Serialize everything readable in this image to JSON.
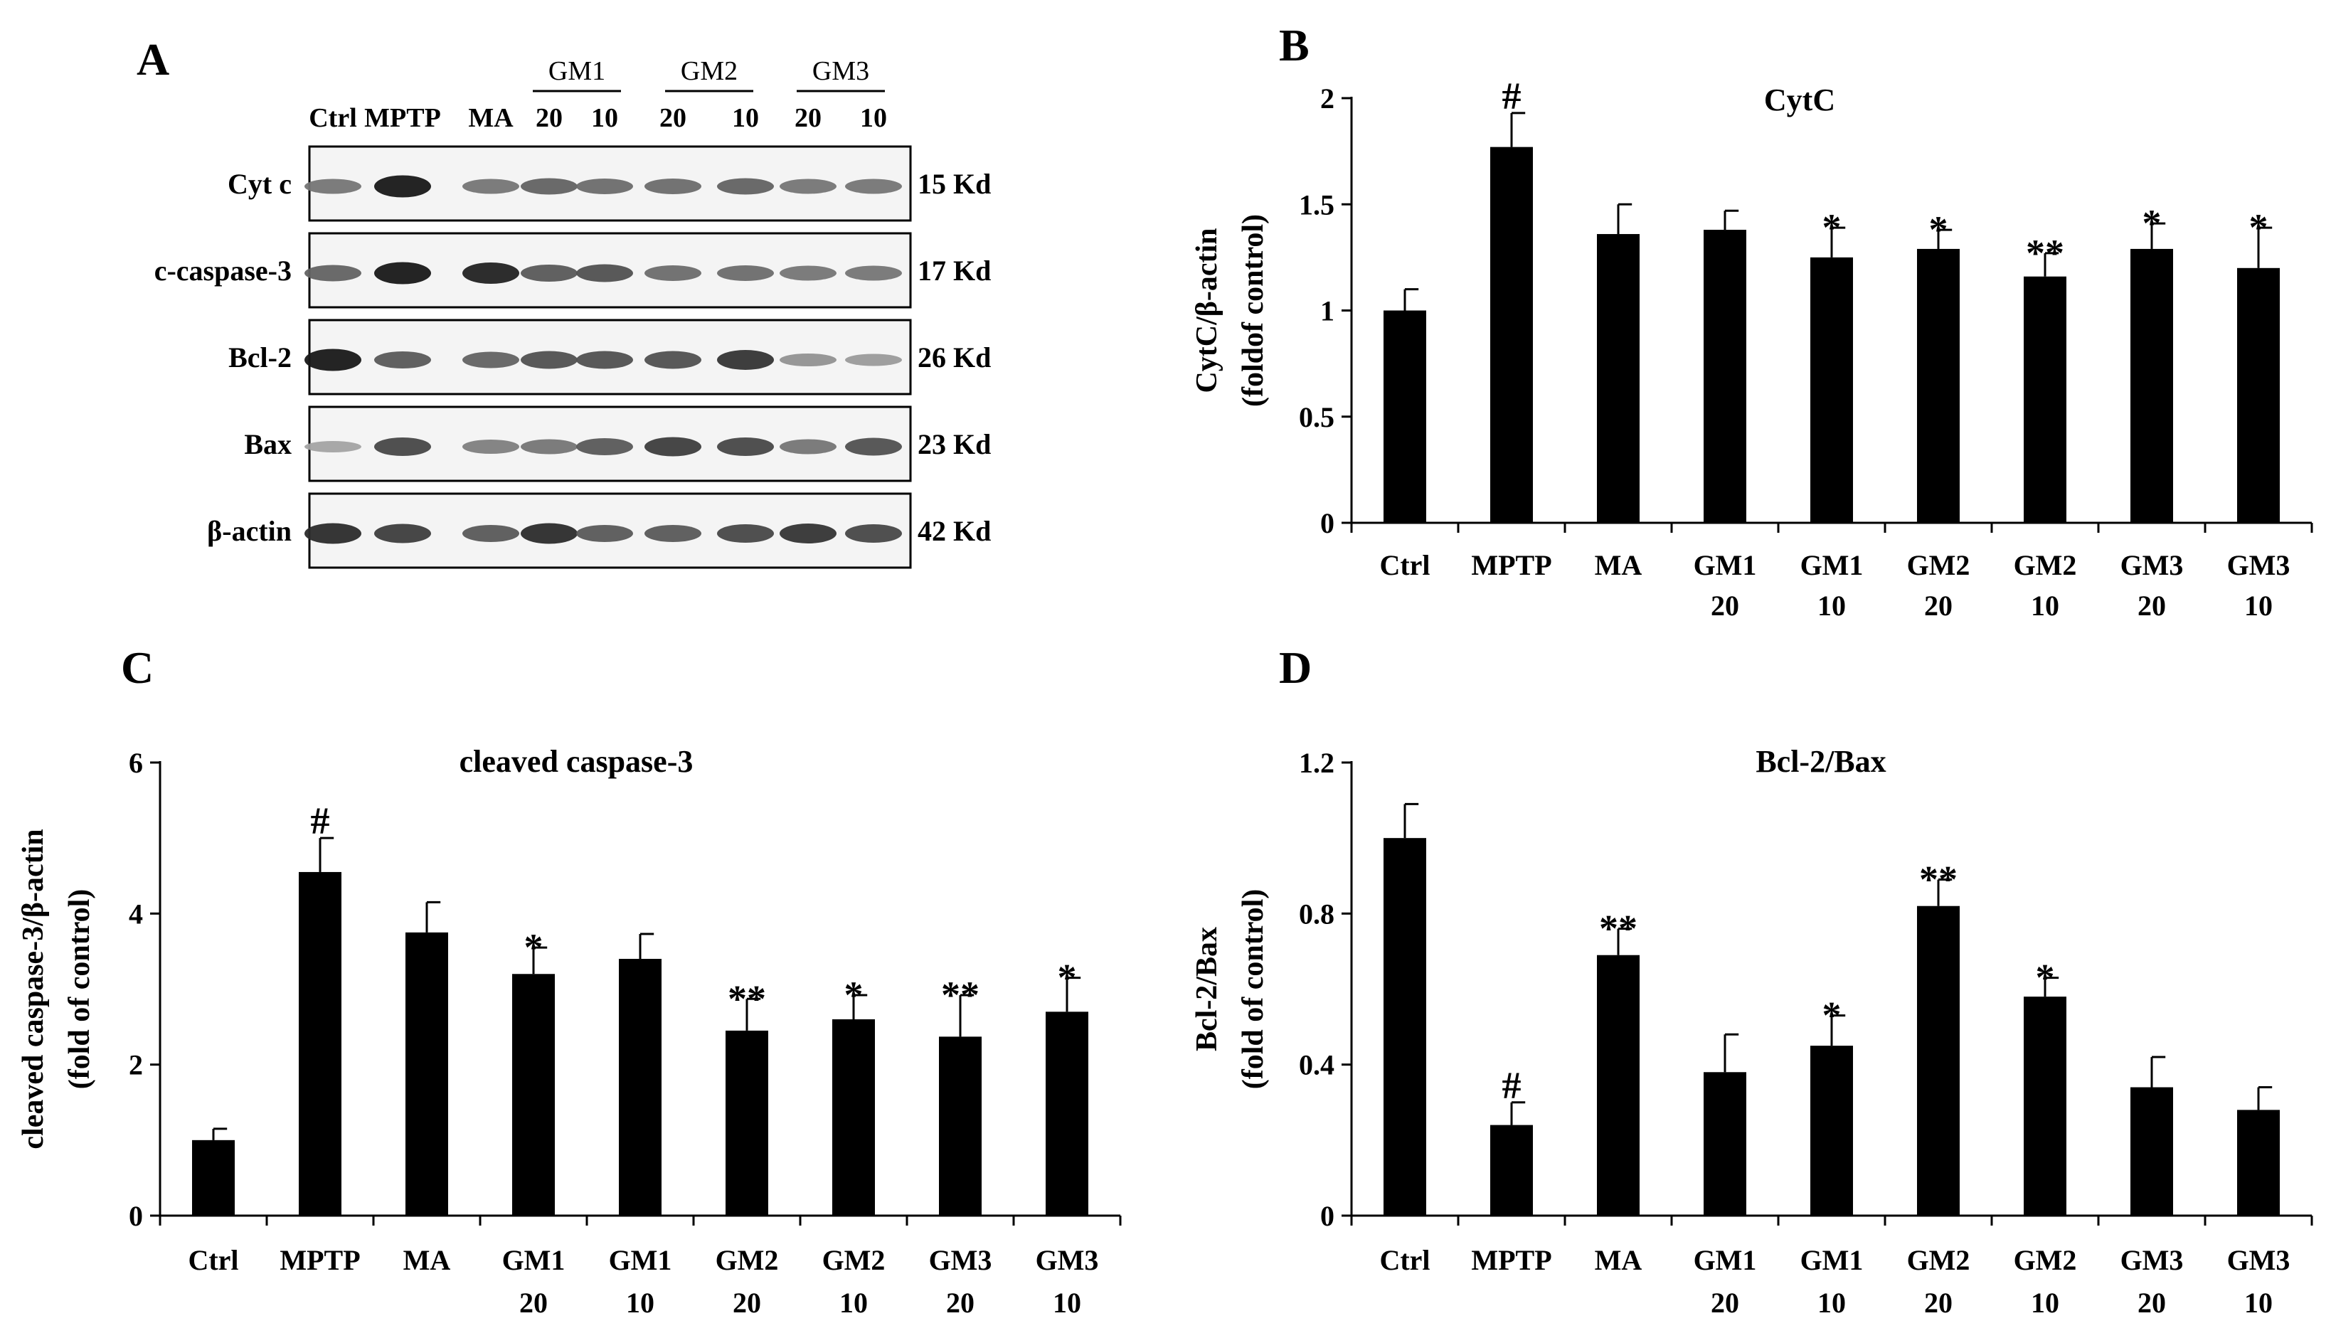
{
  "panel_labels": [
    "A",
    "B",
    "C",
    "D"
  ],
  "western_blot": {
    "lanes": [
      "Ctrl",
      "MPTP",
      "MA",
      "20",
      "10",
      "20",
      "10",
      "20",
      "10"
    ],
    "groups": [
      "GM1",
      "GM2",
      "GM3"
    ],
    "proteins": [
      {
        "name": "Cyt c",
        "kd": "15 Kd"
      },
      {
        "name": "c-caspase-3",
        "kd": "17 Kd"
      },
      {
        "name": "Bcl-2",
        "kd": "26 Kd"
      },
      {
        "name": "Bax",
        "kd": "23 Kd"
      },
      {
        "name": "β-actin",
        "kd": "42 Kd"
      }
    ],
    "band_intensity": [
      [
        0.45,
        0.95,
        0.45,
        0.55,
        0.5,
        0.5,
        0.55,
        0.45,
        0.45
      ],
      [
        0.55,
        0.95,
        0.9,
        0.6,
        0.65,
        0.5,
        0.5,
        0.45,
        0.45
      ],
      [
        0.95,
        0.6,
        0.55,
        0.65,
        0.65,
        0.65,
        0.8,
        0.3,
        0.25
      ],
      [
        0.2,
        0.7,
        0.4,
        0.45,
        0.6,
        0.75,
        0.7,
        0.45,
        0.65
      ],
      [
        0.85,
        0.75,
        0.6,
        0.85,
        0.6,
        0.6,
        0.7,
        0.8,
        0.7
      ]
    ]
  },
  "chart_data": [
    {
      "panel": "B",
      "type": "bar",
      "title": "CytC",
      "ylabel_line1": "CytC/β-actin",
      "ylabel_line2": "(foldof control)",
      "categories": [
        [
          "Ctrl"
        ],
        [
          "MPTP"
        ],
        [
          "MA"
        ],
        [
          "GM1",
          "20"
        ],
        [
          "GM1",
          "10"
        ],
        [
          "GM2",
          "20"
        ],
        [
          "GM2",
          "10"
        ],
        [
          "GM3",
          "20"
        ],
        [
          "GM3",
          "10"
        ]
      ],
      "values": [
        1.0,
        1.77,
        1.36,
        1.38,
        1.25,
        1.29,
        1.16,
        1.29,
        1.2
      ],
      "errors": [
        0.1,
        0.16,
        0.14,
        0.09,
        0.14,
        0.09,
        0.11,
        0.12,
        0.19
      ],
      "significance": [
        "",
        "#",
        "",
        "",
        "*",
        "*",
        "**",
        "*",
        "*"
      ],
      "ylim": [
        0,
        2
      ],
      "yticks": [
        0,
        0.5,
        1,
        1.5,
        2
      ],
      "ytick_labels": [
        "0",
        "0.5",
        "1",
        "1.5",
        "2"
      ]
    },
    {
      "panel": "C",
      "type": "bar",
      "title": "cleaved caspase-3",
      "ylabel_line1": "cleaved caspase-3/β-actin",
      "ylabel_line2": "(fold of control)",
      "categories": [
        [
          "Ctrl"
        ],
        [
          "MPTP"
        ],
        [
          "MA"
        ],
        [
          "GM1",
          "20"
        ],
        [
          "GM1",
          "10"
        ],
        [
          "GM2",
          "20"
        ],
        [
          "GM2",
          "10"
        ],
        [
          "GM3",
          "20"
        ],
        [
          "GM3",
          "10"
        ]
      ],
      "values": [
        1.0,
        4.55,
        3.75,
        3.2,
        3.4,
        2.45,
        2.6,
        2.37,
        2.7
      ],
      "errors": [
        0.15,
        0.45,
        0.4,
        0.35,
        0.33,
        0.42,
        0.32,
        0.55,
        0.45
      ],
      "significance": [
        "",
        "#",
        "",
        "*",
        "",
        "**",
        "*",
        "**",
        "*"
      ],
      "ylim": [
        0,
        6
      ],
      "yticks": [
        0,
        2,
        4,
        6
      ],
      "ytick_labels": [
        "0",
        "2",
        "4",
        "6"
      ]
    },
    {
      "panel": "D",
      "type": "bar",
      "title": "Bcl-2/Bax",
      "ylabel_line1": "Bcl-2/Bax",
      "ylabel_line2": "(fold of control)",
      "categories": [
        [
          "Ctrl"
        ],
        [
          "MPTP"
        ],
        [
          "MA"
        ],
        [
          "GM1",
          "20"
        ],
        [
          "GM1",
          "10"
        ],
        [
          "GM2",
          "20"
        ],
        [
          "GM2",
          "10"
        ],
        [
          "GM3",
          "20"
        ],
        [
          "GM3",
          "10"
        ]
      ],
      "values": [
        1.0,
        0.24,
        0.69,
        0.38,
        0.45,
        0.82,
        0.58,
        0.34,
        0.28
      ],
      "errors": [
        0.09,
        0.06,
        0.07,
        0.1,
        0.08,
        0.07,
        0.05,
        0.08,
        0.06
      ],
      "significance": [
        "",
        "#",
        "**",
        "",
        "*",
        "**",
        "*",
        "",
        ""
      ],
      "ylim": [
        0,
        1.2
      ],
      "yticks": [
        0,
        0.4,
        0.8,
        1.2
      ],
      "ytick_labels": [
        "0",
        "0.4",
        "0.8",
        "1.2"
      ]
    }
  ]
}
